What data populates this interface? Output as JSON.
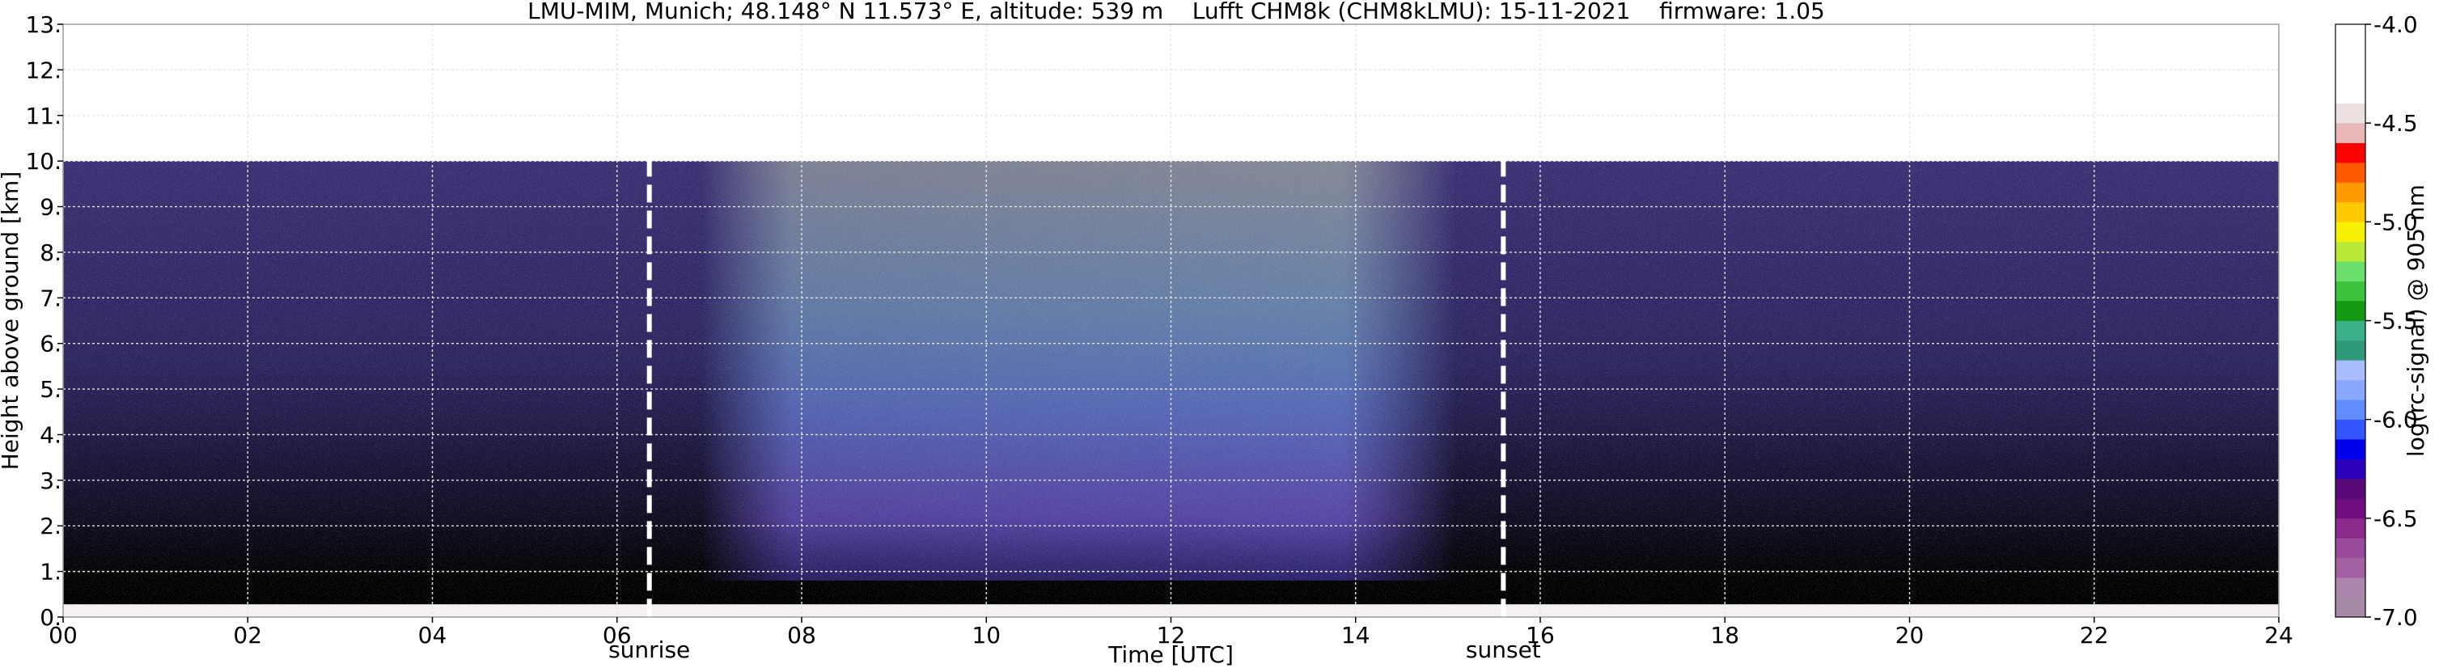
{
  "chart_data": {
    "type": "heatmap",
    "title": "LMU-MIM, Munich; 48.148° N 11.573° E, altitude: 539 m    Lufft CHM8k (CHM8kLMU): 15-11-2021    firmware: 1.05",
    "xlabel": "Time [UTC]",
    "ylabel": "Height above ground [km]",
    "xlim": [
      0,
      24
    ],
    "ylim": [
      0,
      13
    ],
    "x_ticks": [
      0,
      2,
      4,
      6,
      8,
      10,
      12,
      14,
      16,
      18,
      20,
      22,
      24
    ],
    "x_tick_labels": [
      "00",
      "02",
      "04",
      "06",
      "08",
      "10",
      "12",
      "14",
      "16",
      "18",
      "20",
      "22",
      "24"
    ],
    "y_ticks": [
      0,
      1,
      2,
      3,
      4,
      5,
      6,
      7,
      8,
      9,
      10,
      11,
      12,
      13
    ],
    "y_tick_labels": [
      "0.",
      "1.",
      "2.",
      "3.",
      "4.",
      "5.",
      "6.",
      "7.",
      "8.",
      "9.",
      "10.",
      "11.",
      "12.",
      "13."
    ],
    "grid": true,
    "data_ceiling_km": 10,
    "events": [
      {
        "label": "sunrise",
        "time": 6.35
      },
      {
        "label": "sunset",
        "time": 15.6
      }
    ],
    "colorbar": {
      "label": "log(rc-signal) @ 905 nm",
      "range": [
        -7.0,
        -4.0
      ],
      "ticks": [
        -4.0,
        -4.5,
        -5.0,
        -5.5,
        -6.0,
        -6.5,
        -7.0
      ],
      "tick_labels": [
        "-4.0",
        "-4.5",
        "-5.0",
        "-5.5",
        "-6.0",
        "-6.5",
        "-7.0"
      ],
      "levels": [
        {
          "from": -7.0,
          "color": "#a58aa5"
        },
        {
          "from": -6.9,
          "color": "#ad86ad"
        },
        {
          "from": -6.8,
          "color": "#a260a2"
        },
        {
          "from": -6.7,
          "color": "#9a4a9a"
        },
        {
          "from": -6.6,
          "color": "#8b2b8b"
        },
        {
          "from": -6.5,
          "color": "#6f0d7f"
        },
        {
          "from": -6.4,
          "color": "#5a0a78"
        },
        {
          "from": -6.3,
          "color": "#2a00b8"
        },
        {
          "from": -6.2,
          "color": "#0000ee"
        },
        {
          "from": -6.1,
          "color": "#3355ff"
        },
        {
          "from": -6.0,
          "color": "#5f8cff"
        },
        {
          "from": -5.9,
          "color": "#8aa8ff"
        },
        {
          "from": -5.8,
          "color": "#a8bcff"
        },
        {
          "from": -5.7,
          "color": "#2f9a7a"
        },
        {
          "from": -5.6,
          "color": "#3ab08a"
        },
        {
          "from": -5.5,
          "color": "#129a12"
        },
        {
          "from": -5.4,
          "color": "#3dc23d"
        },
        {
          "from": -5.3,
          "color": "#6bdf6b"
        },
        {
          "from": -5.2,
          "color": "#b9ea3a"
        },
        {
          "from": -5.1,
          "color": "#f7f000"
        },
        {
          "from": -5.0,
          "color": "#ffc800"
        },
        {
          "from": -4.9,
          "color": "#ff9a00"
        },
        {
          "from": -4.8,
          "color": "#ff5a00"
        },
        {
          "from": -4.7,
          "color": "#ff0000"
        },
        {
          "from": -4.6,
          "color": "#e8b7b7"
        },
        {
          "from": -4.5,
          "color": "#ede0e0"
        },
        {
          "from": -4.4,
          "color": "#ffffff"
        }
      ]
    }
  }
}
